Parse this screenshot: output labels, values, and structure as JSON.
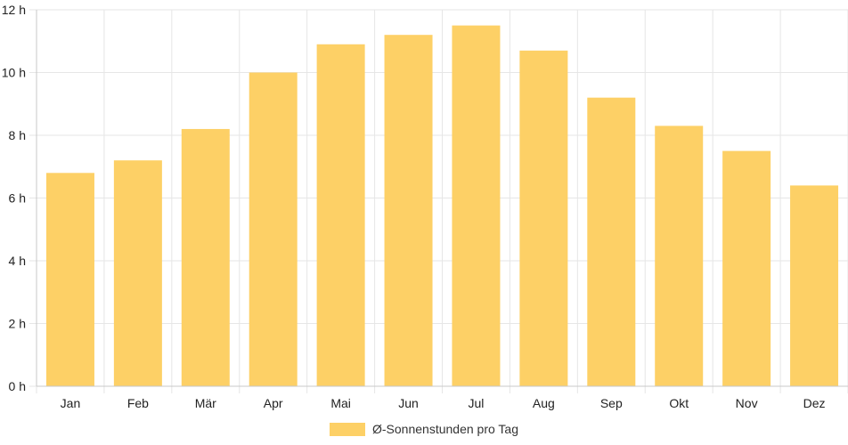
{
  "chart_data": {
    "type": "bar",
    "categories": [
      "Jan",
      "Feb",
      "Mär",
      "Apr",
      "Mai",
      "Jun",
      "Jul",
      "Aug",
      "Sep",
      "Okt",
      "Nov",
      "Dez"
    ],
    "series": [
      {
        "name": "Ø-Sonnenstunden pro Tag",
        "values": [
          6.8,
          7.2,
          8.2,
          10.0,
          10.9,
          11.2,
          11.5,
          10.7,
          9.2,
          8.3,
          7.5,
          6.4
        ]
      }
    ],
    "y_ticks": [
      "0 h",
      "2 h",
      "4 h",
      "6 h",
      "8 h",
      "10 h",
      "12 h"
    ],
    "ylim": [
      0,
      12
    ],
    "grid": true,
    "legend_position": "bottom",
    "colors": {
      "bar": "#fdd066",
      "grid": "#e6e6e6",
      "axis": "#c8c8c8"
    }
  }
}
